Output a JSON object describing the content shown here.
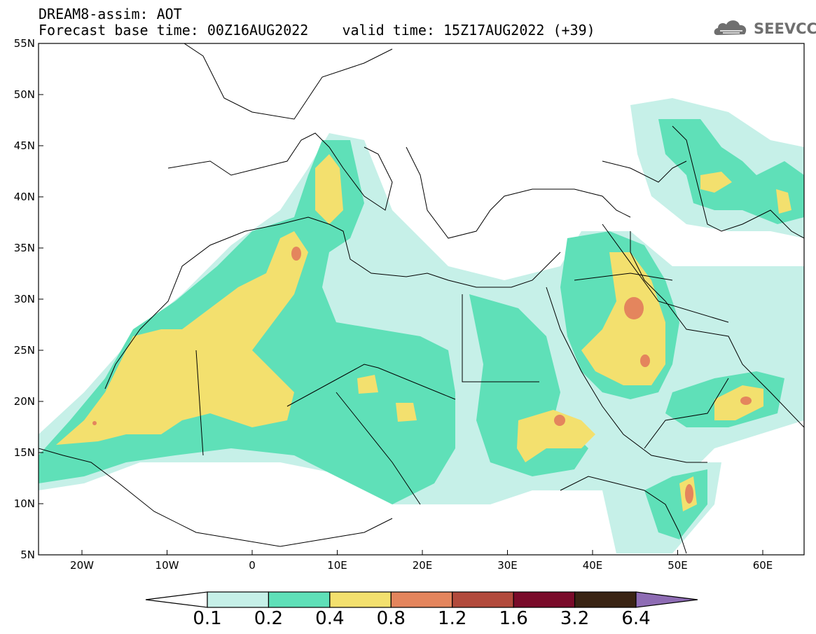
{
  "header": {
    "title": "DREAM8-assim: AOT",
    "subtitle": "Forecast base time: 00Z16AUG2022    valid time: 15Z17AUG2022 (+39)"
  },
  "logo": {
    "text": "SEEVCCC",
    "icon": "cloud-icon"
  },
  "axes": {
    "lat_ticks": [
      "55N",
      "50N",
      "45N",
      "40N",
      "35N",
      "30N",
      "25N",
      "20N",
      "15N",
      "10N",
      "5N"
    ],
    "lon_ticks": [
      "20W",
      "10W",
      "0",
      "10E",
      "20E",
      "30E",
      "40E",
      "50E",
      "60E"
    ]
  },
  "colorbar": {
    "labels": [
      "0.1",
      "0.2",
      "0.4",
      "0.8",
      "1.2",
      "1.6",
      "3.2",
      "6.4"
    ],
    "colors": [
      "#ffffff",
      "#c6f0e8",
      "#5fe0b8",
      "#f3e06e",
      "#e4855d",
      "#b24a3c",
      "#7a0b2a",
      "#3a2414",
      "#8e6cb4"
    ]
  },
  "map_colors": {
    "l1": "#c6f0e8",
    "l2": "#5fe0b8",
    "l3": "#f3e06e",
    "l4": "#e4855d"
  }
}
